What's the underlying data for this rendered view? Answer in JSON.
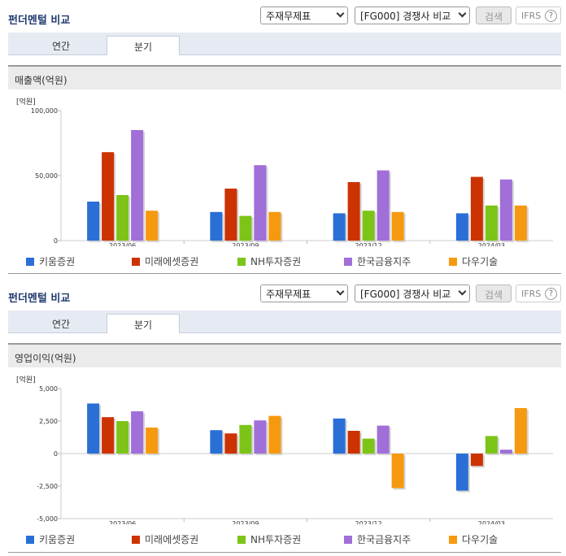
{
  "panels": [
    {
      "title": "펀더멘털 비교",
      "select1": "주재무제표",
      "select2": "[FG000] 경쟁사 비교",
      "search": "검색",
      "ifrs": "IFRS",
      "help": "?",
      "tabs": [
        "연간",
        "분기"
      ],
      "active_tab": 1,
      "chart_title": "매출액(억원)",
      "unit": "[억원]"
    },
    {
      "title": "펀더멘털 비교",
      "select1": "주재무제표",
      "select2": "[FG000] 경쟁사 비교",
      "search": "검색",
      "ifrs": "IFRS",
      "help": "?",
      "tabs": [
        "연간",
        "분기"
      ],
      "active_tab": 1,
      "chart_title": "영업이익(억원)",
      "unit": "[억원]"
    }
  ],
  "chart_data": [
    {
      "type": "bar",
      "title": "매출액(억원)",
      "ylabel": "[억원]",
      "categories": [
        "2023/06",
        "2023/09",
        "2023/12",
        "2024/03"
      ],
      "ylim": [
        0,
        100000
      ],
      "yticks": [
        "100,000",
        "50,000",
        "0"
      ],
      "yticks_values": [
        100000,
        50000,
        0
      ],
      "series": [
        {
          "name": "키움증권",
          "color": "#2a6fd6",
          "values": [
            30000,
            22000,
            21000,
            21000
          ]
        },
        {
          "name": "미래에셋증권",
          "color": "#cc3300",
          "values": [
            68000,
            40000,
            45000,
            49000
          ]
        },
        {
          "name": "NH투자증권",
          "color": "#7cc418",
          "values": [
            35000,
            19000,
            23000,
            27000
          ]
        },
        {
          "name": "한국금융지주",
          "color": "#a06fd8",
          "values": [
            85000,
            58000,
            54000,
            47000
          ]
        },
        {
          "name": "다우기술",
          "color": "#f59a10",
          "values": [
            23000,
            22000,
            22000,
            27000
          ]
        }
      ],
      "legend": "bottom"
    },
    {
      "type": "bar",
      "title": "영업이익(억원)",
      "ylabel": "[억원]",
      "categories": [
        "2023/06",
        "2023/09",
        "2023/12",
        "2024/03"
      ],
      "ylim": [
        -5000,
        5000
      ],
      "yticks": [
        "5,000",
        "2,500",
        "0",
        "-2,500",
        "-5,000"
      ],
      "yticks_values": [
        5000,
        2500,
        0,
        -2500,
        -5000
      ],
      "series": [
        {
          "name": "키움증권",
          "color": "#2a6fd6",
          "values": [
            3850,
            1800,
            2700,
            -2850
          ]
        },
        {
          "name": "미래에셋증권",
          "color": "#cc3300",
          "values": [
            2800,
            1550,
            1750,
            -950
          ]
        },
        {
          "name": "NH투자증권",
          "color": "#7cc418",
          "values": [
            2500,
            2200,
            1150,
            1350
          ]
        },
        {
          "name": "한국금융지주",
          "color": "#a06fd8",
          "values": [
            3250,
            2550,
            2150,
            300
          ]
        },
        {
          "name": "다우기술",
          "color": "#f59a10",
          "values": [
            2000,
            2900,
            -2650,
            3500
          ]
        }
      ],
      "legend": "bottom"
    }
  ]
}
